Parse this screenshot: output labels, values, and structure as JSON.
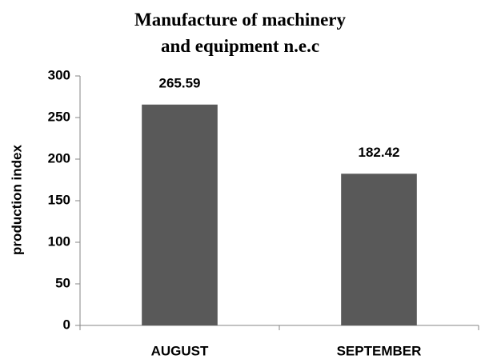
{
  "chart_data": {
    "type": "bar",
    "title": "Manufacture of machinery and equipment n.e.c",
    "y_label": "production index",
    "categories": [
      "AUGUST",
      "SEPTEMBER"
    ],
    "values": [
      265.59,
      182.42
    ],
    "color": "#595959",
    "ylim": [
      0,
      300
    ],
    "yticks": [
      0,
      50,
      100,
      150,
      200,
      250,
      300
    ],
    "grid": false
  }
}
